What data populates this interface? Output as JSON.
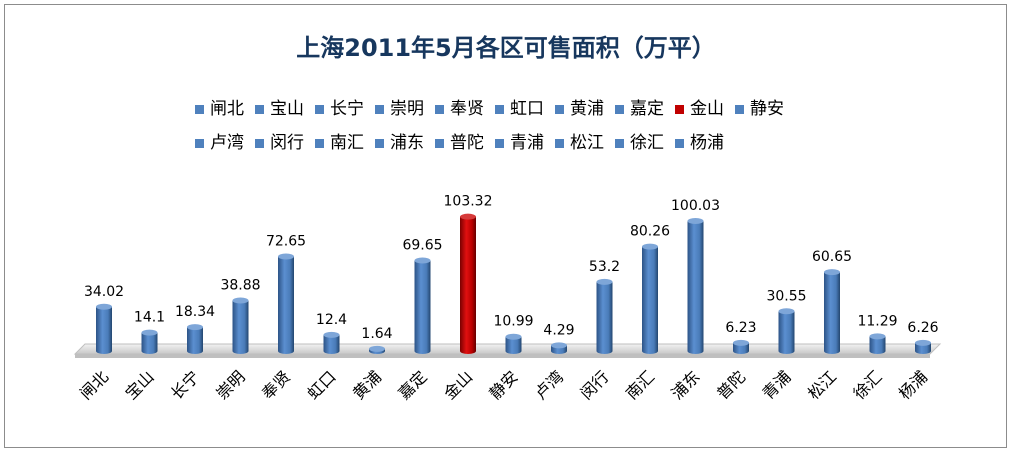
{
  "chart_data": {
    "type": "bar",
    "title": "上海2011年5月各区可售面积（万平）",
    "categories": [
      "闸北",
      "宝山",
      "长宁",
      "崇明",
      "奉贤",
      "虹口",
      "黄浦",
      "嘉定",
      "金山",
      "静安",
      "卢湾",
      "闵行",
      "南汇",
      "浦东",
      "普陀",
      "青浦",
      "松江",
      "徐汇",
      "杨浦"
    ],
    "values": [
      34.02,
      14.1,
      18.34,
      38.88,
      72.65,
      12.4,
      1.64,
      69.65,
      103.32,
      10.99,
      4.29,
      53.2,
      80.26,
      100.03,
      6.23,
      30.55,
      60.65,
      11.29,
      6.26
    ],
    "value_labels": [
      "34.02",
      "14.1",
      "18.34",
      "38.88",
      "72.65",
      "12.4",
      "1.64",
      "69.65",
      "103.32",
      "10.99",
      "4.29",
      "53.2",
      "80.26",
      "100.03",
      "6.23",
      "30.55",
      "60.65",
      "11.29",
      "6.26"
    ],
    "highlight_category": "金山",
    "colors": {
      "default": "#4f81bd",
      "highlight": "#c00000",
      "title": "#17375e",
      "floor": "#d9d9d9"
    },
    "legend_placement": "top",
    "gridlines": false,
    "ylim": [
      0,
      110
    ],
    "xlabel": "",
    "ylabel": ""
  }
}
